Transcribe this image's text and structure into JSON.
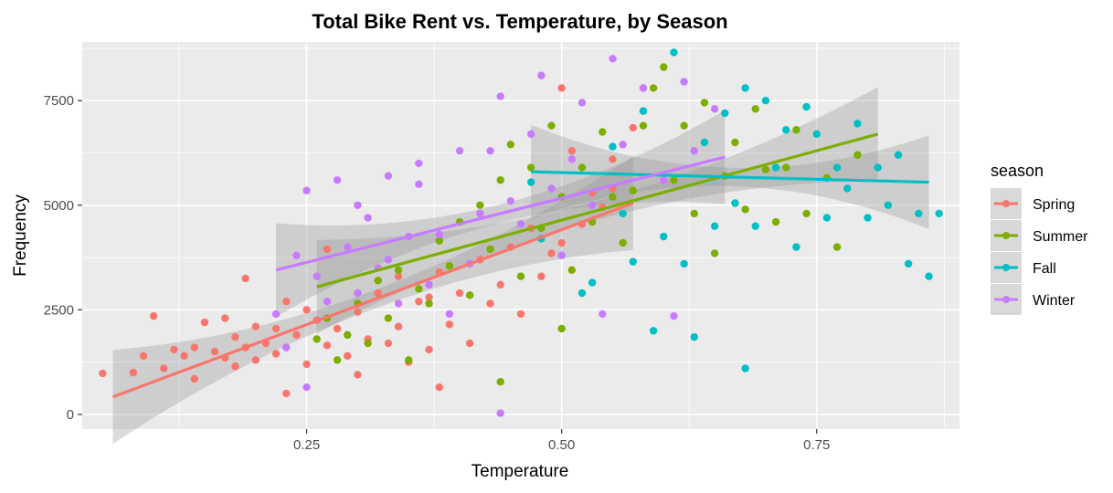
{
  "chart_data": {
    "type": "scatter",
    "title": "Total Bike Rent vs. Temperature, by Season",
    "xlabel": "Temperature",
    "ylabel": "Frequency",
    "xlim": [
      0.03,
      0.89
    ],
    "ylim": [
      -350,
      8900
    ],
    "x_ticks": [
      0.25,
      0.5,
      0.75
    ],
    "x_tick_labels": [
      "0.25",
      "0.50",
      "0.75"
    ],
    "y_ticks": [
      0,
      2500,
      5000,
      7500
    ],
    "y_tick_labels": [
      "0",
      "2500",
      "5000",
      "7500"
    ],
    "grid": true,
    "legend": {
      "title": "season",
      "position": "right"
    },
    "colors": {
      "Spring": "#f8766d",
      "Summer": "#7cae00",
      "Fall": "#00bfc4",
      "Winter": "#c77cff",
      "panel": "#ebebeb",
      "grid": "#ffffff",
      "ribbon": "#999999"
    },
    "series": [
      {
        "name": "Spring",
        "points": [
          [
            0.05,
            980
          ],
          [
            0.08,
            1000
          ],
          [
            0.09,
            1400
          ],
          [
            0.1,
            2350
          ],
          [
            0.11,
            1100
          ],
          [
            0.12,
            1550
          ],
          [
            0.13,
            1400
          ],
          [
            0.14,
            1600
          ],
          [
            0.14,
            850
          ],
          [
            0.15,
            2200
          ],
          [
            0.16,
            1500
          ],
          [
            0.17,
            1350
          ],
          [
            0.17,
            2300
          ],
          [
            0.18,
            1150
          ],
          [
            0.18,
            1850
          ],
          [
            0.19,
            3250
          ],
          [
            0.19,
            1600
          ],
          [
            0.2,
            1300
          ],
          [
            0.2,
            2100
          ],
          [
            0.21,
            1700
          ],
          [
            0.22,
            1450
          ],
          [
            0.22,
            2050
          ],
          [
            0.23,
            500
          ],
          [
            0.23,
            2700
          ],
          [
            0.24,
            1900
          ],
          [
            0.25,
            1200
          ],
          [
            0.25,
            2500
          ],
          [
            0.26,
            2250
          ],
          [
            0.27,
            1650
          ],
          [
            0.27,
            3950
          ],
          [
            0.28,
            2050
          ],
          [
            0.29,
            1400
          ],
          [
            0.3,
            2450
          ],
          [
            0.3,
            950
          ],
          [
            0.31,
            1800
          ],
          [
            0.32,
            2900
          ],
          [
            0.33,
            1700
          ],
          [
            0.34,
            2100
          ],
          [
            0.34,
            3300
          ],
          [
            0.35,
            1250
          ],
          [
            0.36,
            2700
          ],
          [
            0.37,
            1550
          ],
          [
            0.37,
            2800
          ],
          [
            0.38,
            650
          ],
          [
            0.38,
            3400
          ],
          [
            0.39,
            2150
          ],
          [
            0.4,
            2900
          ],
          [
            0.41,
            1700
          ],
          [
            0.42,
            3700
          ],
          [
            0.43,
            2650
          ],
          [
            0.44,
            3100
          ],
          [
            0.45,
            4000
          ],
          [
            0.46,
            2400
          ],
          [
            0.47,
            4450
          ],
          [
            0.48,
            3300
          ],
          [
            0.49,
            3850
          ],
          [
            0.5,
            4100
          ],
          [
            0.5,
            7800
          ],
          [
            0.51,
            6300
          ],
          [
            0.52,
            4550
          ],
          [
            0.53,
            5300
          ],
          [
            0.54,
            4950
          ],
          [
            0.55,
            5400
          ],
          [
            0.55,
            6100
          ],
          [
            0.57,
            6850
          ]
        ],
        "fit": [
          [
            0.06,
            420
          ],
          [
            0.57,
            5050
          ]
        ]
      },
      {
        "name": "Summer",
        "points": [
          [
            0.26,
            1800
          ],
          [
            0.27,
            2300
          ],
          [
            0.28,
            1300
          ],
          [
            0.29,
            1900
          ],
          [
            0.3,
            2650
          ],
          [
            0.31,
            1700
          ],
          [
            0.32,
            3200
          ],
          [
            0.33,
            2300
          ],
          [
            0.34,
            3450
          ],
          [
            0.35,
            1300
          ],
          [
            0.36,
            3000
          ],
          [
            0.37,
            2650
          ],
          [
            0.38,
            4150
          ],
          [
            0.39,
            3550
          ],
          [
            0.4,
            4600
          ],
          [
            0.41,
            2850
          ],
          [
            0.42,
            5000
          ],
          [
            0.43,
            3950
          ],
          [
            0.44,
            780
          ],
          [
            0.44,
            5600
          ],
          [
            0.45,
            6450
          ],
          [
            0.46,
            3300
          ],
          [
            0.47,
            5900
          ],
          [
            0.48,
            4450
          ],
          [
            0.49,
            6900
          ],
          [
            0.5,
            2050
          ],
          [
            0.5,
            5200
          ],
          [
            0.51,
            3450
          ],
          [
            0.52,
            5900
          ],
          [
            0.53,
            4600
          ],
          [
            0.54,
            6750
          ],
          [
            0.55,
            5200
          ],
          [
            0.56,
            4100
          ],
          [
            0.57,
            5350
          ],
          [
            0.58,
            6900
          ],
          [
            0.59,
            7800
          ],
          [
            0.6,
            8300
          ],
          [
            0.61,
            5600
          ],
          [
            0.62,
            6900
          ],
          [
            0.63,
            4800
          ],
          [
            0.64,
            7450
          ],
          [
            0.65,
            3850
          ],
          [
            0.66,
            5700
          ],
          [
            0.67,
            6500
          ],
          [
            0.68,
            4900
          ],
          [
            0.69,
            7300
          ],
          [
            0.7,
            5850
          ],
          [
            0.71,
            4600
          ],
          [
            0.72,
            5900
          ],
          [
            0.73,
            6800
          ],
          [
            0.74,
            4800
          ],
          [
            0.76,
            5650
          ],
          [
            0.77,
            4000
          ],
          [
            0.79,
            6200
          ]
        ],
        "fit": [
          [
            0.26,
            3050
          ],
          [
            0.81,
            6700
          ]
        ]
      },
      {
        "name": "Fall",
        "points": [
          [
            0.47,
            5550
          ],
          [
            0.48,
            4200
          ],
          [
            0.5,
            3800
          ],
          [
            0.52,
            2900
          ],
          [
            0.53,
            3150
          ],
          [
            0.55,
            6400
          ],
          [
            0.56,
            4800
          ],
          [
            0.57,
            3650
          ],
          [
            0.58,
            7250
          ],
          [
            0.59,
            2000
          ],
          [
            0.6,
            4250
          ],
          [
            0.61,
            8650
          ],
          [
            0.62,
            3600
          ],
          [
            0.63,
            1850
          ],
          [
            0.64,
            6500
          ],
          [
            0.65,
            4500
          ],
          [
            0.66,
            7200
          ],
          [
            0.67,
            5050
          ],
          [
            0.68,
            1100
          ],
          [
            0.68,
            7800
          ],
          [
            0.69,
            4500
          ],
          [
            0.7,
            7500
          ],
          [
            0.71,
            5900
          ],
          [
            0.72,
            6800
          ],
          [
            0.73,
            4000
          ],
          [
            0.74,
            7350
          ],
          [
            0.75,
            6700
          ],
          [
            0.76,
            4700
          ],
          [
            0.77,
            5900
          ],
          [
            0.78,
            5400
          ],
          [
            0.79,
            6950
          ],
          [
            0.8,
            4700
          ],
          [
            0.81,
            5900
          ],
          [
            0.82,
            5000
          ],
          [
            0.83,
            6200
          ],
          [
            0.84,
            3600
          ],
          [
            0.85,
            4800
          ],
          [
            0.86,
            3300
          ],
          [
            0.87,
            4800
          ]
        ],
        "fit": [
          [
            0.47,
            5800
          ],
          [
            0.86,
            5550
          ]
        ]
      },
      {
        "name": "Winter",
        "points": [
          [
            0.22,
            2400
          ],
          [
            0.23,
            1600
          ],
          [
            0.24,
            3800
          ],
          [
            0.25,
            650
          ],
          [
            0.25,
            5350
          ],
          [
            0.26,
            3300
          ],
          [
            0.27,
            2700
          ],
          [
            0.28,
            5600
          ],
          [
            0.29,
            4000
          ],
          [
            0.3,
            2900
          ],
          [
            0.3,
            5000
          ],
          [
            0.31,
            4700
          ],
          [
            0.32,
            3500
          ],
          [
            0.33,
            3700
          ],
          [
            0.33,
            5700
          ],
          [
            0.34,
            2650
          ],
          [
            0.35,
            4250
          ],
          [
            0.36,
            5500
          ],
          [
            0.36,
            6000
          ],
          [
            0.37,
            3100
          ],
          [
            0.38,
            4300
          ],
          [
            0.39,
            2400
          ],
          [
            0.4,
            6300
          ],
          [
            0.41,
            3600
          ],
          [
            0.42,
            4800
          ],
          [
            0.43,
            6300
          ],
          [
            0.44,
            7600
          ],
          [
            0.44,
            30
          ],
          [
            0.45,
            5100
          ],
          [
            0.46,
            4550
          ],
          [
            0.47,
            6700
          ],
          [
            0.48,
            8100
          ],
          [
            0.49,
            5400
          ],
          [
            0.5,
            3800
          ],
          [
            0.51,
            6100
          ],
          [
            0.52,
            7450
          ],
          [
            0.53,
            5000
          ],
          [
            0.54,
            2400
          ],
          [
            0.55,
            8500
          ],
          [
            0.56,
            6450
          ],
          [
            0.58,
            7800
          ],
          [
            0.6,
            5600
          ],
          [
            0.61,
            2350
          ],
          [
            0.62,
            7950
          ],
          [
            0.63,
            6300
          ],
          [
            0.65,
            7300
          ]
        ],
        "fit": [
          [
            0.22,
            3450
          ],
          [
            0.66,
            6150
          ]
        ]
      }
    ]
  }
}
